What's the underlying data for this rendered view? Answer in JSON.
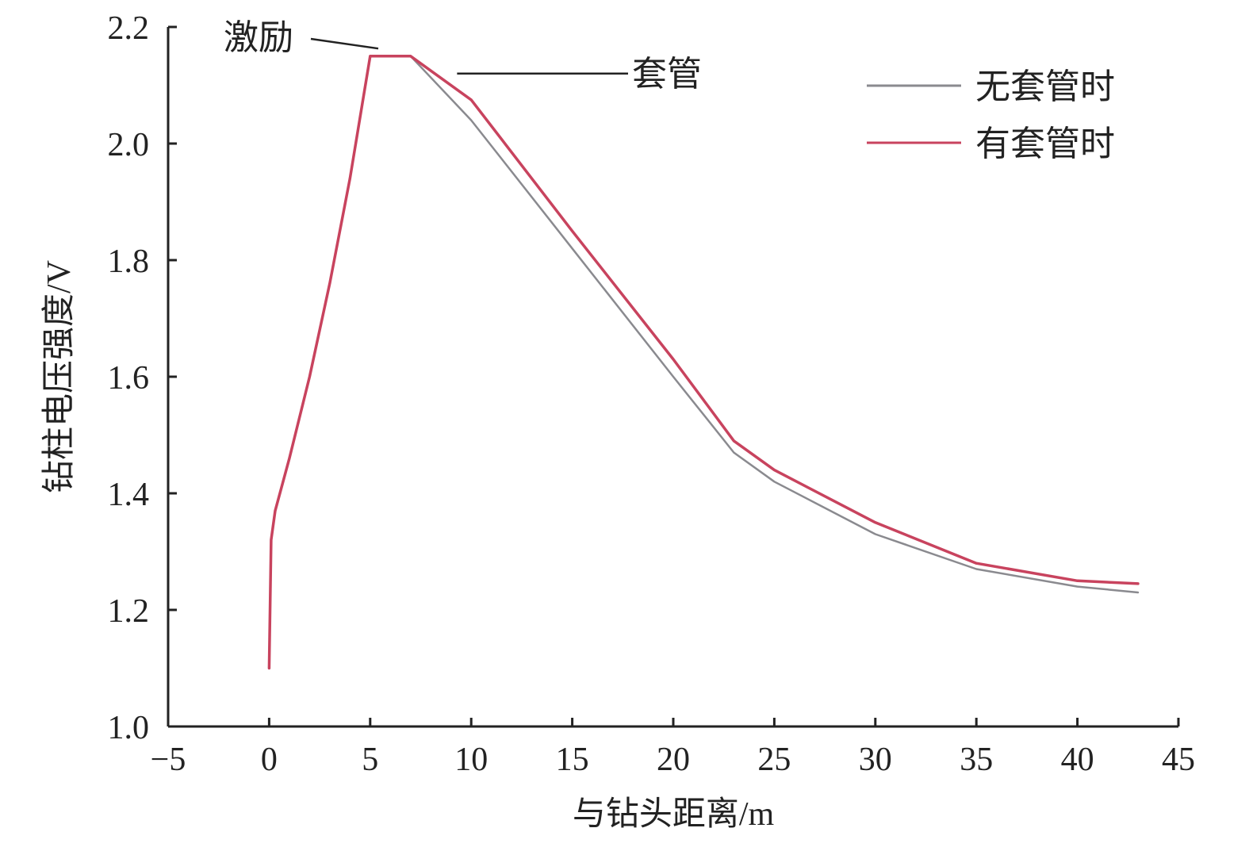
{
  "chart_data": {
    "type": "line",
    "title": "",
    "xlabel": "与钻头距离/m",
    "ylabel": "钻柱电压强度/V",
    "xlim": [
      -5,
      45
    ],
    "ylim": [
      1.0,
      2.2
    ],
    "xticks": [
      -5,
      0,
      5,
      10,
      15,
      20,
      25,
      30,
      35,
      40,
      45
    ],
    "xtick_labels": [
      "−5",
      "0",
      "5",
      "10",
      "15",
      "20",
      "25",
      "30",
      "35",
      "40",
      "45"
    ],
    "yticks": [
      1.0,
      1.2,
      1.4,
      1.6,
      1.8,
      2.0,
      2.2
    ],
    "ytick_labels": [
      "1.0",
      "1.2",
      "1.4",
      "1.6",
      "1.8",
      "2.0",
      "2.2"
    ],
    "grid": false,
    "legend_position": "top-right",
    "series": [
      {
        "name": "无套管时",
        "color": "#8a8a8f",
        "points": [
          [
            0,
            1.1
          ],
          [
            0.1,
            1.32
          ],
          [
            0.3,
            1.37
          ],
          [
            1,
            1.46
          ],
          [
            2,
            1.6
          ],
          [
            3,
            1.76
          ],
          [
            4,
            1.94
          ],
          [
            5,
            2.15
          ],
          [
            7,
            2.15
          ],
          [
            10,
            2.04
          ],
          [
            15,
            1.82
          ],
          [
            20,
            1.6
          ],
          [
            23,
            1.47
          ],
          [
            25,
            1.42
          ],
          [
            30,
            1.33
          ],
          [
            35,
            1.27
          ],
          [
            40,
            1.24
          ],
          [
            43,
            1.23
          ]
        ]
      },
      {
        "name": "有套管时",
        "color": "#c8435e",
        "points": [
          [
            0,
            1.1
          ],
          [
            0.1,
            1.32
          ],
          [
            0.3,
            1.37
          ],
          [
            1,
            1.46
          ],
          [
            2,
            1.6
          ],
          [
            3,
            1.76
          ],
          [
            4,
            1.94
          ],
          [
            5,
            2.15
          ],
          [
            7,
            2.15
          ],
          [
            10,
            2.075
          ],
          [
            15,
            1.85
          ],
          [
            20,
            1.63
          ],
          [
            23,
            1.49
          ],
          [
            25,
            1.44
          ],
          [
            30,
            1.35
          ],
          [
            35,
            1.28
          ],
          [
            40,
            1.25
          ],
          [
            43,
            1.245
          ]
        ]
      }
    ],
    "annotations": [
      {
        "text": "激励",
        "target": [
          5.4,
          2.163
        ]
      },
      {
        "text": "套管",
        "target": [
          9.3,
          2.12
        ]
      }
    ]
  }
}
